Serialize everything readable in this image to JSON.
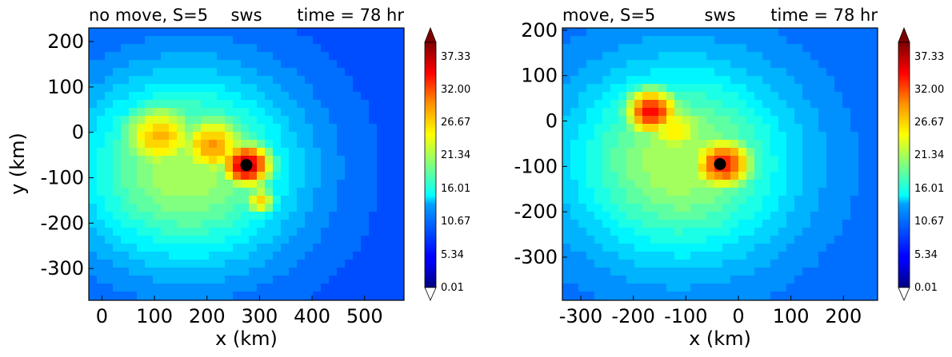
{
  "chart_data": [
    {
      "type": "heatmap",
      "title_left": "no move, S=5",
      "title_center": "sws",
      "title_right": "time = 78 hr",
      "title_left_color": "#ff0000",
      "title_center_color": "#000000",
      "title_right_color": "#0000ff",
      "xlabel": "x (km)",
      "ylabel": "y (km)",
      "xlim": [
        -25,
        575
      ],
      "ylim": [
        -370,
        230
      ],
      "xticks": [
        0,
        100,
        200,
        300,
        400,
        500
      ],
      "yticks": [
        200,
        100,
        0,
        -100,
        -200,
        -300
      ],
      "center_marker": {
        "x": 275,
        "y": -72
      },
      "colorbar": {
        "ticks": [
          "37.33",
          "32.00",
          "26.67",
          "21.34",
          "16.01",
          "10.67",
          "5.34",
          "0.01"
        ],
        "min": 0.01,
        "max": 40
      },
      "field_features": [
        {
          "x": 275,
          "y": -72,
          "value": 38,
          "spread_km": 38
        },
        {
          "x": 210,
          "y": -30,
          "value": 29,
          "spread_km": 55
        },
        {
          "x": 110,
          "y": -10,
          "value": 28,
          "spread_km": 60
        },
        {
          "x": 160,
          "y": -80,
          "value": 22,
          "spread_km": 150
        },
        {
          "x": 300,
          "y": -150,
          "value": 27,
          "spread_km": 25
        }
      ],
      "background_value": 8
    },
    {
      "type": "heatmap",
      "title_left": "move, S=5",
      "title_center": "sws",
      "title_right": "time = 78 hr",
      "title_left_color": "#ff0000",
      "title_center_color": "#000000",
      "title_right_color": "#0000ff",
      "xlabel": "x (km)",
      "ylabel": "",
      "xlim": [
        -335,
        265
      ],
      "ylim": [
        -395,
        205
      ],
      "xticks": [
        -300,
        -200,
        -100,
        0,
        100,
        200
      ],
      "yticks": [
        200,
        100,
        0,
        -100,
        -200,
        -300
      ],
      "center_marker": {
        "x": -35,
        "y": -95
      },
      "colorbar": {
        "ticks": [
          "37.33",
          "32.00",
          "26.67",
          "21.34",
          "16.01",
          "10.67",
          "5.34",
          "0.01"
        ],
        "min": 0.01,
        "max": 40
      },
      "field_features": [
        {
          "x": -30,
          "y": -95,
          "value": 34,
          "spread_km": 45
        },
        {
          "x": -165,
          "y": 20,
          "value": 35,
          "spread_km": 40
        },
        {
          "x": -120,
          "y": -20,
          "value": 26,
          "spread_km": 50
        },
        {
          "x": -110,
          "y": -90,
          "value": 22,
          "spread_km": 150
        }
      ],
      "background_value": 9
    }
  ]
}
